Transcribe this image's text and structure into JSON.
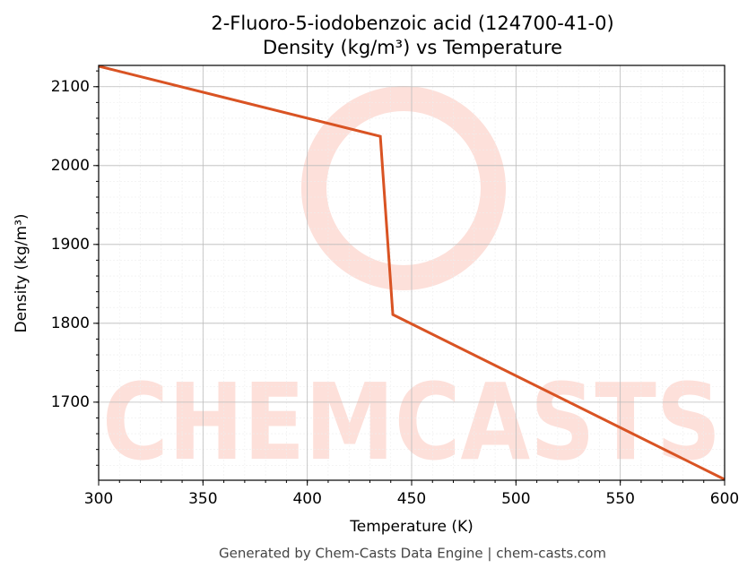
{
  "chart_data": {
    "type": "line",
    "title": "2-Fluoro-5-iodobenzoic acid (124700-41-0)",
    "subtitle": "Density (kg/m³) vs Temperature",
    "x_label": "Temperature (K)",
    "y_label": "Density (kg/m³)",
    "footer": "Generated by Chem-Casts Data Engine | chem-casts.com",
    "watermark": "CHEMCASTS",
    "x": [
      300,
      435,
      441,
      600
    ],
    "series": [
      {
        "name": "Density",
        "color": "#d95323",
        "values": [
          2126,
          2037,
          1811,
          1602
        ]
      }
    ],
    "xlim": [
      300,
      600
    ],
    "xticks": [
      300,
      350,
      400,
      450,
      500,
      550,
      600
    ],
    "ylim": [
      1601,
      2127
    ],
    "yticks": [
      1700,
      1800,
      1900,
      2000,
      2100
    ],
    "grid": true,
    "minor_grid": true
  }
}
